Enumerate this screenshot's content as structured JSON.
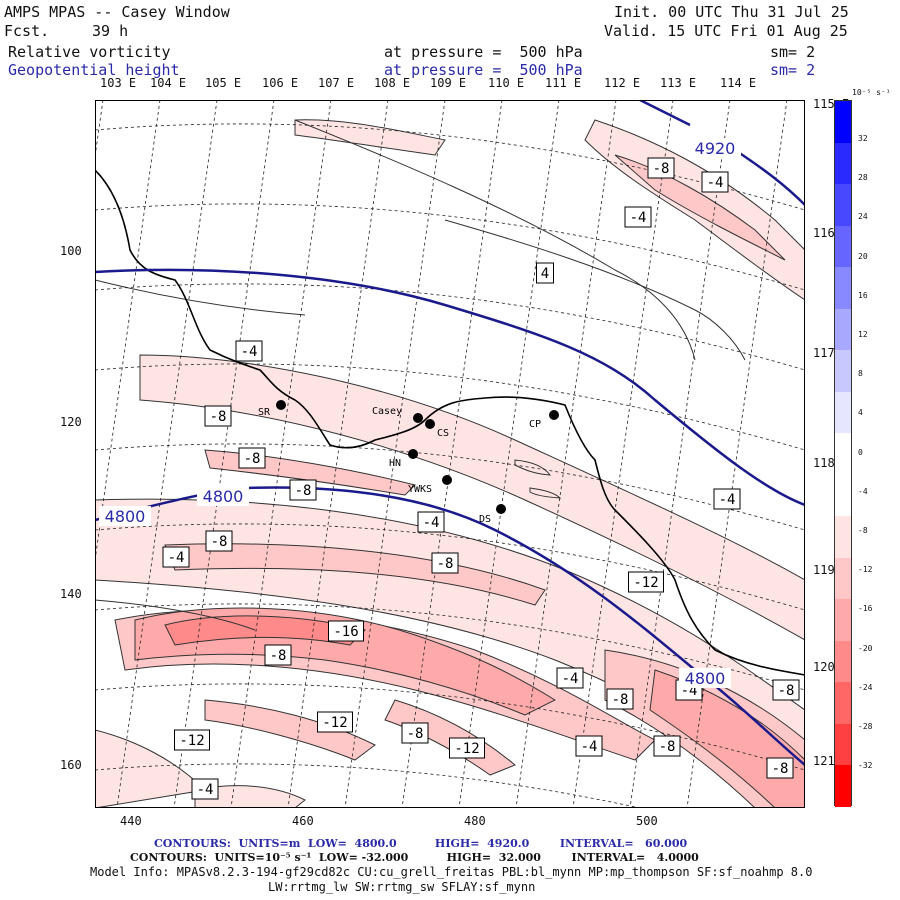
{
  "header": {
    "title": "AMPS MPAS -- Casey Window",
    "fcst_label": "Fcst.",
    "fcst_value": "39 h",
    "init": "Init. 00 UTC Thu 31 Jul 25",
    "valid": "Valid. 15 UTC Fri 01 Aug 25",
    "field1": "Relative vorticity",
    "field1_level": "at pressure =  500 hPa",
    "field1_sm": "sm= 2",
    "field2": "Geopotential height",
    "field2_level": "at pressure =  500 hPa",
    "field2_sm": "sm= 2"
  },
  "longitude_labels": [
    "103 E",
    "104 E",
    "105 E",
    "106 E",
    "107 E",
    "108 E",
    "109 E",
    "110 E",
    "111 E",
    "112 E",
    "113 E",
    "114 E"
  ],
  "latitude_labels": [
    "115 E",
    "116 E",
    "117 E",
    "118 E",
    "119 E",
    "120 E",
    "121 E"
  ],
  "y_axis_labels": [
    "100",
    "120",
    "140",
    "160"
  ],
  "x_axis_labels": [
    "440",
    "460",
    "480",
    "500"
  ],
  "stations": [
    {
      "name": "SR"
    },
    {
      "name": "Casey"
    },
    {
      "name": "CS"
    },
    {
      "name": "HN"
    },
    {
      "name": "YWKS"
    },
    {
      "name": "DS"
    },
    {
      "name": "CP"
    }
  ],
  "vorticity_labels": [
    "-8",
    "-4",
    "-4",
    "4",
    "-4",
    "-8",
    "-8",
    "-8",
    "-4",
    "-8",
    "-4",
    "-8",
    "-12",
    "-4",
    "-16",
    "-8",
    "-4",
    "-8",
    "-12",
    "-8",
    "-12",
    "-12",
    "-4",
    "-8",
    "-8",
    "-4",
    "-8",
    "-4"
  ],
  "height_labels": [
    "4920",
    "4800",
    "4800",
    "4800"
  ],
  "colorbar": {
    "unit": "10⁻⁵ s⁻¹",
    "ticks": [
      "32",
      "28",
      "24",
      "20",
      "16",
      "12",
      "8",
      "4",
      "0",
      "-4",
      "-8",
      "-12",
      "-16",
      "-20",
      "-24",
      "-28",
      "-32"
    ],
    "colors": [
      "#0000ff",
      "#2a2aff",
      "#4848ff",
      "#6666ff",
      "#8888ff",
      "#a8a8ff",
      "#c8c8ff",
      "#e6e6ff",
      "#ffffff",
      "#ffffff",
      "#ffe4e4",
      "#ffc8c8",
      "#ffaaaa",
      "#ff8a8a",
      "#ff6666",
      "#ff4040",
      "#ff0000"
    ]
  },
  "footer": {
    "line1": "CONTOURS:  UNITS=m  LOW=  4800.0          HIGH=  4920.0        INTERVAL=   60.000",
    "line2": "CONTOURS:  UNITS=10⁻⁵ s⁻¹  LOW= -32.000          HIGH=  32.000        INTERVAL=   4.0000",
    "line3": "Model Info: MPASv8.2.3-194-gf29cd82c CU:cu_grell_freitas PBL:bl_mynn MP:mp_thompson SF:sf_noahmp 8.0",
    "line4": "LW:rrtmg_lw SW:rrtmg_sw SFLAY:sf_mynn"
  },
  "colors": {
    "height_contour": "#1a1a8c",
    "text_blue": "#2a2aa8"
  }
}
